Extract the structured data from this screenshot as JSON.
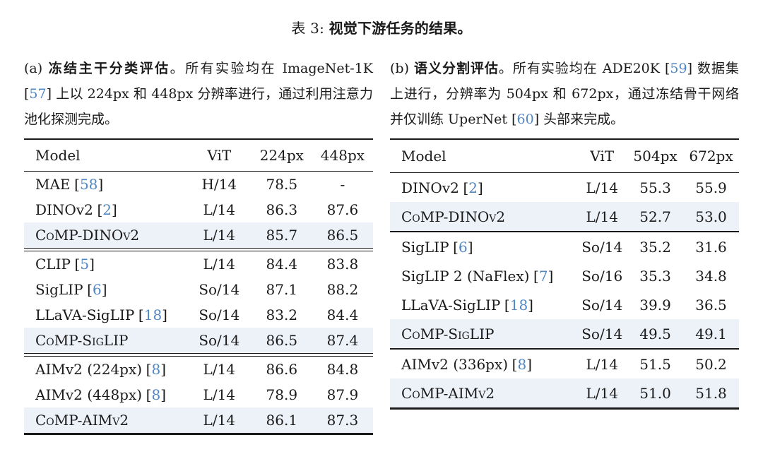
{
  "title": {
    "prefix": "表 3: ",
    "main": "视觉下游任务的结果。"
  },
  "punct": {
    "lbracket": "[",
    "rbracket": "]"
  },
  "colors": {
    "citation_blue": "#4f86c4",
    "highlight_row": "#edf1f8"
  },
  "panel_a": {
    "caption": {
      "label": "(a) ",
      "bold": "冻结主干分类评估",
      "seg1": "。所有实验均在 ImageNet-1K ",
      "cite1": "57",
      "seg2": " 上以 224px 和 448px 分辨率进行，通过利用注意力池化探测完成。"
    },
    "table": {
      "headers": [
        "Model",
        "ViT",
        "224px",
        "448px"
      ],
      "groups": [
        {
          "rows": [
            {
              "name": "MAE",
              "cite": "58",
              "vit": "H/14",
              "r1": "78.5",
              "r2": "-"
            },
            {
              "name": "DINOv2",
              "cite": "2",
              "vit": "L/14",
              "r1": "86.3",
              "r2": "87.6"
            },
            {
              "name": "CoMP-DINOv2",
              "vit": "L/14",
              "r1": "85.7",
              "r2": "86.5"
            }
          ]
        },
        {
          "rows": [
            {
              "name": "CLIP",
              "cite": "5",
              "vit": "L/14",
              "r1": "84.4",
              "r2": "83.8"
            },
            {
              "name": "SigLIP",
              "cite": "6",
              "vit": "So/14",
              "r1": "87.1",
              "r2": "88.2"
            },
            {
              "name": "LLaVA-SigLIP",
              "cite": "18",
              "vit": "So/14",
              "r1": "83.2",
              "r2": "84.4"
            },
            {
              "name": "CoMP-SigLIP",
              "vit": "So/14",
              "r1": "86.5",
              "r2": "87.4"
            }
          ]
        },
        {
          "rows": [
            {
              "name": "AIMv2 (224px)",
              "cite": "8",
              "vit": "L/14",
              "r1": "86.6",
              "r2": "84.8"
            },
            {
              "name": "AIMv2 (448px)",
              "cite": "8",
              "vit": "L/14",
              "r1": "78.9",
              "r2": "87.9"
            },
            {
              "name": "CoMP-AIMv2",
              "vit": "L/14",
              "r1": "86.1",
              "r2": "87.3"
            }
          ]
        }
      ]
    }
  },
  "panel_b": {
    "caption": {
      "label": "(b) ",
      "bold": "语义分割评估",
      "seg1": "。所有实验均在 ADE20K ",
      "cite1": "59",
      "seg2": " 数据集上进行，分辨率为 504px 和 672px，通过冻结骨干网络并仅训练 UperNet ",
      "cite2": "60",
      "seg3": " 头部来完成。"
    },
    "table": {
      "headers": [
        "Model",
        "ViT",
        "504px",
        "672px"
      ],
      "groups": [
        {
          "rows": [
            {
              "name": "DINOv2",
              "cite": "2",
              "vit": "L/14",
              "r1": "55.3",
              "r2": "55.9"
            },
            {
              "name": "CoMP-DINOv2",
              "vit": "L/14",
              "r1": "52.7",
              "r2": "53.0"
            }
          ]
        },
        {
          "rows": [
            {
              "name": "SigLIP",
              "cite": "6",
              "vit": "So/14",
              "r1": "35.2",
              "r2": "31.6"
            },
            {
              "name": "SigLIP 2 (NaFlex)",
              "cite": "7",
              "vit": "So/16",
              "r1": "35.3",
              "r2": "34.8"
            },
            {
              "name": "LLaVA-SigLIP",
              "cite": "18",
              "vit": "So/14",
              "r1": "39.9",
              "r2": "36.5"
            },
            {
              "name": "CoMP-SigLIP",
              "vit": "So/14",
              "r1": "49.5",
              "r2": "49.1"
            }
          ]
        },
        {
          "rows": [
            {
              "name": "AIMv2 (336px)",
              "cite": "8",
              "vit": "L/14",
              "r1": "51.5",
              "r2": "50.2"
            },
            {
              "name": "CoMP-AIMv2",
              "vit": "L/14",
              "r1": "51.0",
              "r2": "51.8"
            }
          ]
        }
      ]
    }
  }
}
